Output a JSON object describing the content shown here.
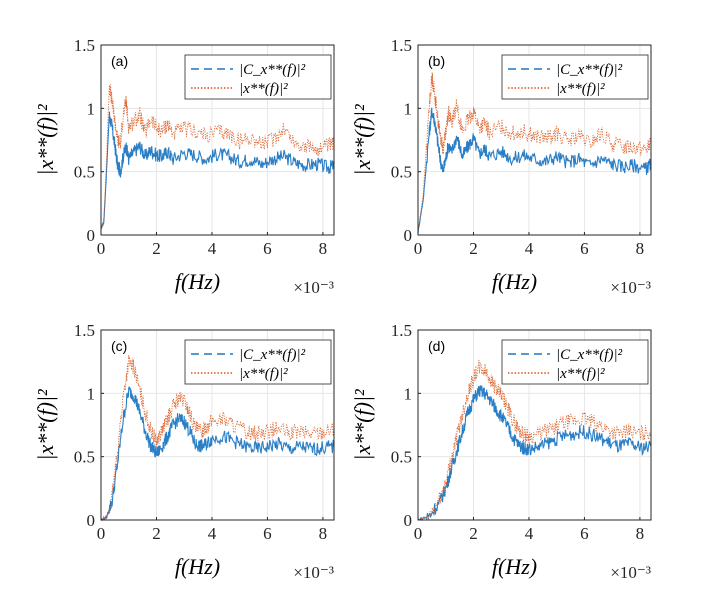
{
  "figure": {
    "ylabel": "|x**(f)|²",
    "xlabel": "f(Hz)",
    "x_exponent": "×10⁻³"
  },
  "legend": {
    "entry1": "|C_x**(f)|²",
    "entry2": "|x**(f)|²"
  },
  "colors": {
    "series1": "#1f77c2",
    "series2": "#d9541a",
    "grid": "#e6e6e6",
    "axis": "#262626"
  },
  "chart_data": [
    {
      "panel": "(a)",
      "type": "line",
      "xlim": [
        0,
        8.4
      ],
      "ylim": [
        0,
        1.5
      ],
      "xticks": [
        0,
        2,
        4,
        6,
        8
      ],
      "yticks": [
        0,
        0.5,
        1,
        1.5
      ],
      "xlabel": "f(Hz)",
      "x_exponent": "×10⁻³",
      "ylabel": "|x**(f)|²",
      "legend": [
        "|C_x**(f)|²",
        "|x**(f)|²"
      ],
      "series": [
        {
          "name": "|C_x**(f)|²",
          "style": "dashed",
          "x": [
            0,
            0.1,
            0.2,
            0.3,
            0.4,
            0.5,
            0.6,
            0.7,
            0.8,
            0.9,
            1.0,
            1.2,
            1.4,
            1.6,
            1.8,
            2.0,
            2.2,
            2.4,
            2.6,
            3.0,
            3.4,
            3.8,
            4.2,
            4.6,
            5.0,
            5.4,
            5.8,
            6.2,
            6.6,
            7.0,
            7.4,
            7.8,
            8.2,
            8.4
          ],
          "y": [
            0.05,
            0.1,
            0.5,
            0.95,
            0.85,
            0.7,
            0.55,
            0.5,
            0.62,
            0.7,
            0.6,
            0.66,
            0.7,
            0.62,
            0.67,
            0.63,
            0.62,
            0.66,
            0.6,
            0.65,
            0.63,
            0.6,
            0.64,
            0.62,
            0.58,
            0.6,
            0.56,
            0.6,
            0.62,
            0.57,
            0.55,
            0.56,
            0.53,
            0.55
          ]
        },
        {
          "name": "|x**(f)|²",
          "style": "dotted",
          "x": [
            0,
            0.1,
            0.2,
            0.3,
            0.4,
            0.5,
            0.6,
            0.7,
            0.8,
            0.9,
            1.0,
            1.2,
            1.4,
            1.6,
            1.8,
            2.0,
            2.2,
            2.4,
            2.6,
            3.0,
            3.4,
            3.8,
            4.2,
            4.6,
            5.0,
            5.4,
            5.8,
            6.2,
            6.6,
            7.0,
            7.4,
            7.8,
            8.2,
            8.4
          ],
          "y": [
            0.05,
            0.12,
            0.6,
            1.18,
            1.05,
            0.9,
            0.75,
            0.72,
            0.95,
            1.05,
            0.85,
            0.9,
            0.95,
            0.8,
            0.92,
            0.84,
            0.82,
            0.88,
            0.8,
            0.84,
            0.82,
            0.78,
            0.82,
            0.8,
            0.74,
            0.77,
            0.72,
            0.75,
            0.85,
            0.72,
            0.7,
            0.68,
            0.7,
            0.72
          ]
        }
      ]
    },
    {
      "panel": "(b)",
      "type": "line",
      "xlim": [
        0,
        8.4
      ],
      "ylim": [
        0,
        1.5
      ],
      "xticks": [
        0,
        2,
        4,
        6,
        8
      ],
      "yticks": [
        0,
        0.5,
        1,
        1.5
      ],
      "xlabel": "f(Hz)",
      "x_exponent": "×10⁻³",
      "ylabel": "|x**(f)|²",
      "legend": [
        "|C_x**(f)|²",
        "|x**(f)|²"
      ],
      "series": [
        {
          "name": "|C_x**(f)|²",
          "style": "dashed",
          "x": [
            0,
            0.2,
            0.4,
            0.5,
            0.6,
            0.7,
            0.8,
            0.9,
            1.0,
            1.1,
            1.2,
            1.4,
            1.6,
            1.8,
            2.0,
            2.2,
            2.4,
            2.6,
            3.0,
            3.4,
            3.8,
            4.2,
            4.6,
            5.0,
            5.4,
            5.8,
            6.2,
            6.6,
            7.0,
            7.4,
            7.8,
            8.2,
            8.4
          ],
          "y": [
            0.02,
            0.3,
            0.8,
            0.98,
            0.9,
            0.75,
            0.6,
            0.5,
            0.6,
            0.72,
            0.65,
            0.78,
            0.62,
            0.7,
            0.76,
            0.64,
            0.68,
            0.62,
            0.66,
            0.6,
            0.63,
            0.6,
            0.58,
            0.62,
            0.57,
            0.6,
            0.55,
            0.6,
            0.56,
            0.54,
            0.55,
            0.52,
            0.56
          ]
        },
        {
          "name": "|x**(f)|²",
          "style": "dotted",
          "x": [
            0,
            0.2,
            0.4,
            0.5,
            0.6,
            0.7,
            0.8,
            0.9,
            1.0,
            1.1,
            1.2,
            1.4,
            1.6,
            1.8,
            2.0,
            2.2,
            2.4,
            2.6,
            3.0,
            3.4,
            3.8,
            4.2,
            4.6,
            5.0,
            5.4,
            5.8,
            6.2,
            6.6,
            7.0,
            7.4,
            7.8,
            8.2,
            8.4
          ],
          "y": [
            0.02,
            0.35,
            1.0,
            1.25,
            1.12,
            0.95,
            0.78,
            0.68,
            0.82,
            0.98,
            0.88,
            1.02,
            0.82,
            0.9,
            0.98,
            0.84,
            0.88,
            0.8,
            0.86,
            0.8,
            0.82,
            0.78,
            0.76,
            0.8,
            0.74,
            0.78,
            0.72,
            0.8,
            0.72,
            0.7,
            0.7,
            0.68,
            0.72
          ]
        }
      ]
    },
    {
      "panel": "(c)",
      "type": "line",
      "xlim": [
        0,
        8.4
      ],
      "ylim": [
        0,
        1.5
      ],
      "xticks": [
        0,
        2,
        4,
        6,
        8
      ],
      "yticks": [
        0,
        0.5,
        1,
        1.5
      ],
      "xlabel": "f(Hz)",
      "x_exponent": "×10⁻³",
      "ylabel": "|x**(f)|²",
      "legend": [
        "|C_x**(f)|²",
        "|x**(f)|²"
      ],
      "series": [
        {
          "name": "|C_x**(f)|²",
          "style": "dashed",
          "x": [
            0,
            0.2,
            0.4,
            0.6,
            0.8,
            1.0,
            1.2,
            1.4,
            1.6,
            1.8,
            2.0,
            2.2,
            2.4,
            2.6,
            2.8,
            3.0,
            3.2,
            3.4,
            3.6,
            3.8,
            4.0,
            4.4,
            4.8,
            5.2,
            5.6,
            6.0,
            6.4,
            6.8,
            7.2,
            7.6,
            8.0,
            8.4
          ],
          "y": [
            0.0,
            0.02,
            0.15,
            0.45,
            0.8,
            1.02,
            0.98,
            0.85,
            0.7,
            0.58,
            0.52,
            0.58,
            0.66,
            0.75,
            0.8,
            0.78,
            0.7,
            0.6,
            0.58,
            0.6,
            0.64,
            0.66,
            0.62,
            0.58,
            0.56,
            0.58,
            0.6,
            0.56,
            0.58,
            0.56,
            0.57,
            0.58
          ]
        },
        {
          "name": "|x**(f)|²",
          "style": "dotted",
          "x": [
            0,
            0.2,
            0.4,
            0.6,
            0.8,
            1.0,
            1.2,
            1.4,
            1.6,
            1.8,
            2.0,
            2.2,
            2.4,
            2.6,
            2.8,
            3.0,
            3.2,
            3.4,
            3.6,
            3.8,
            4.0,
            4.4,
            4.8,
            5.2,
            5.6,
            6.0,
            6.4,
            6.8,
            7.2,
            7.6,
            8.0,
            8.4
          ],
          "y": [
            0.0,
            0.02,
            0.18,
            0.55,
            0.98,
            1.25,
            1.2,
            1.02,
            0.85,
            0.7,
            0.62,
            0.7,
            0.8,
            0.9,
            0.96,
            0.94,
            0.84,
            0.72,
            0.7,
            0.74,
            0.78,
            0.8,
            0.75,
            0.7,
            0.68,
            0.7,
            0.72,
            0.68,
            0.7,
            0.68,
            0.7,
            0.72
          ]
        }
      ]
    },
    {
      "panel": "(d)",
      "type": "line",
      "xlim": [
        0,
        8.4
      ],
      "ylim": [
        0,
        1.5
      ],
      "xticks": [
        0,
        2,
        4,
        6,
        8
      ],
      "yticks": [
        0,
        0.5,
        1,
        1.5
      ],
      "xlabel": "f(Hz)",
      "x_exponent": "×10⁻³",
      "ylabel": "|x**(f)|²",
      "legend": [
        "|C_x**(f)|²",
        "|x**(f)|²"
      ],
      "series": [
        {
          "name": "|C_x**(f)|²",
          "style": "dashed",
          "x": [
            0,
            0.4,
            0.8,
            1.0,
            1.2,
            1.4,
            1.6,
            1.8,
            2.0,
            2.2,
            2.4,
            2.6,
            2.8,
            3.0,
            3.2,
            3.4,
            3.6,
            3.8,
            4.0,
            4.4,
            4.8,
            5.2,
            5.6,
            6.0,
            6.4,
            6.8,
            7.2,
            7.6,
            8.0,
            8.4
          ],
          "y": [
            0.0,
            0.03,
            0.15,
            0.25,
            0.4,
            0.55,
            0.7,
            0.85,
            0.95,
            1.02,
            1.0,
            0.95,
            0.88,
            0.82,
            0.75,
            0.66,
            0.6,
            0.57,
            0.56,
            0.58,
            0.62,
            0.66,
            0.68,
            0.7,
            0.66,
            0.62,
            0.58,
            0.6,
            0.57,
            0.58
          ]
        },
        {
          "name": "|x**(f)|²",
          "style": "dotted",
          "x": [
            0,
            0.4,
            0.8,
            1.0,
            1.2,
            1.4,
            1.6,
            1.8,
            2.0,
            2.2,
            2.4,
            2.6,
            2.8,
            3.0,
            3.2,
            3.4,
            3.6,
            3.8,
            4.0,
            4.4,
            4.8,
            5.2,
            5.6,
            6.0,
            6.4,
            6.8,
            7.2,
            7.6,
            8.0,
            8.4
          ],
          "y": [
            0.0,
            0.03,
            0.17,
            0.3,
            0.48,
            0.66,
            0.84,
            1.0,
            1.12,
            1.2,
            1.18,
            1.12,
            1.04,
            0.98,
            0.9,
            0.8,
            0.72,
            0.68,
            0.66,
            0.68,
            0.72,
            0.76,
            0.78,
            0.8,
            0.76,
            0.72,
            0.68,
            0.7,
            0.68,
            0.7
          ]
        }
      ]
    }
  ]
}
